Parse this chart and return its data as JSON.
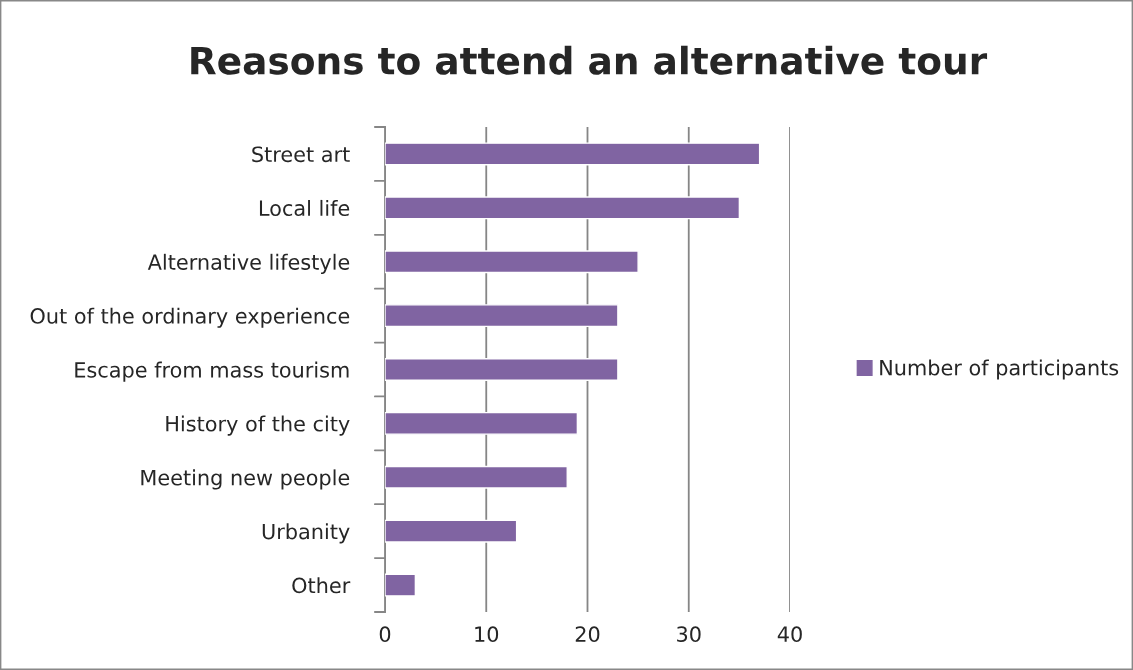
{
  "chart_data": {
    "type": "bar",
    "orientation": "horizontal",
    "title": "Reasons to attend an alternative tour",
    "categories": [
      "Street art",
      "Local life",
      "Alternative lifestyle",
      "Out of the ordinary experience",
      "Escape from mass tourism",
      "History of the city",
      "Meeting new people",
      "Urbanity",
      "Other"
    ],
    "series": [
      {
        "name": "Number of participants",
        "color": "#8064a2",
        "values": [
          37,
          35,
          25,
          23,
          23,
          19,
          18,
          13,
          3
        ]
      }
    ],
    "xlim": [
      0,
      40
    ],
    "xticks": [
      0,
      10,
      20,
      30,
      40
    ],
    "grid": "x",
    "legend": "right"
  }
}
